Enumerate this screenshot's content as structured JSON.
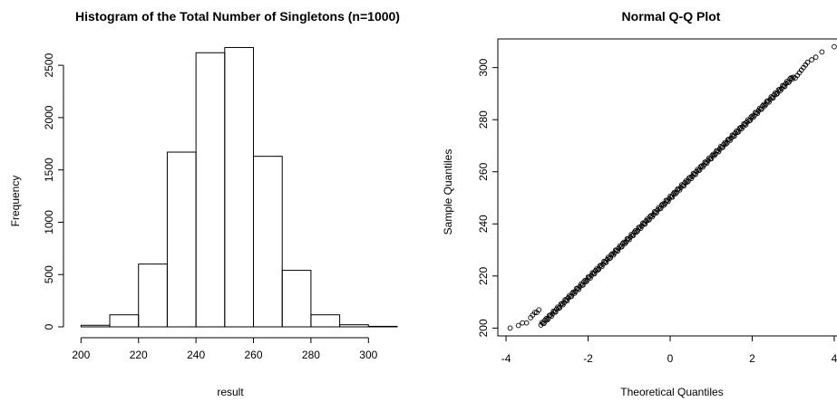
{
  "chart_data": [
    {
      "type": "bar",
      "title": "Histogram of the Total Number of Singletons (n=1000)",
      "xlabel": "result",
      "ylabel": "Frequency",
      "bins": [
        {
          "x0": 200,
          "x1": 210,
          "count": 15
        },
        {
          "x0": 210,
          "x1": 220,
          "count": 115
        },
        {
          "x0": 220,
          "x1": 230,
          "count": 600
        },
        {
          "x0": 230,
          "x1": 240,
          "count": 1670
        },
        {
          "x0": 240,
          "x1": 250,
          "count": 2620
        },
        {
          "x0": 250,
          "x1": 260,
          "count": 2670
        },
        {
          "x0": 260,
          "x1": 270,
          "count": 1630
        },
        {
          "x0": 270,
          "x1": 280,
          "count": 540
        },
        {
          "x0": 280,
          "x1": 290,
          "count": 115
        },
        {
          "x0": 290,
          "x1": 300,
          "count": 20
        },
        {
          "x0": 300,
          "x1": 310,
          "count": 5
        }
      ],
      "xticks": [
        200,
        220,
        240,
        260,
        280,
        300
      ],
      "yticks": [
        0,
        500,
        1000,
        1500,
        2000,
        2500
      ],
      "xlim": [
        198,
        310
      ],
      "ylim": [
        0,
        2700
      ]
    },
    {
      "type": "scatter",
      "title": "Normal Q-Q Plot",
      "xlabel": "Theoretical Quantiles",
      "ylabel": "Sample Quantiles",
      "xticks": [
        -4,
        -2,
        0,
        2,
        4
      ],
      "yticks": [
        200,
        220,
        240,
        260,
        280,
        300
      ],
      "xlim": [
        -4.2,
        4.2
      ],
      "ylim": [
        197,
        311
      ],
      "fit_line": {
        "intercept": 250,
        "slope": 15.5
      },
      "tail_points": [
        {
          "x": -3.9,
          "y": 200
        },
        {
          "x": -3.7,
          "y": 201
        },
        {
          "x": -3.6,
          "y": 202
        },
        {
          "x": -3.5,
          "y": 202
        },
        {
          "x": -3.4,
          "y": 204
        },
        {
          "x": -3.35,
          "y": 205
        },
        {
          "x": -3.3,
          "y": 206
        },
        {
          "x": -3.25,
          "y": 206
        },
        {
          "x": -3.2,
          "y": 207
        },
        {
          "x": 3.05,
          "y": 296
        },
        {
          "x": 3.1,
          "y": 297
        },
        {
          "x": 3.15,
          "y": 298
        },
        {
          "x": 3.2,
          "y": 299
        },
        {
          "x": 3.25,
          "y": 300
        },
        {
          "x": 3.3,
          "y": 301
        },
        {
          "x": 3.35,
          "y": 302
        },
        {
          "x": 3.45,
          "y": 303
        },
        {
          "x": 3.55,
          "y": 304
        },
        {
          "x": 3.7,
          "y": 306
        },
        {
          "x": 4.0,
          "y": 308
        }
      ],
      "point_style": "open-circle",
      "color": "#000000"
    }
  ]
}
